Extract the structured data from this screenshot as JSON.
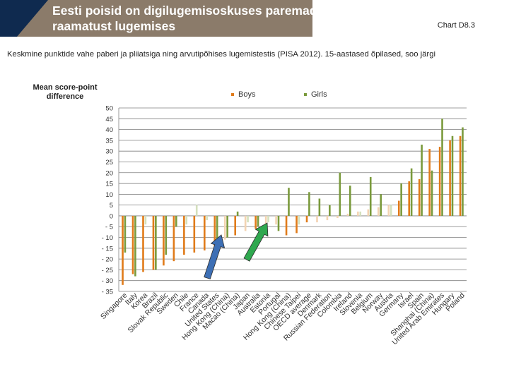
{
  "header": {
    "title": "Eesti poisid on digilugemisoskuses paremad kui\nraamatust lugemises",
    "chart_ref": "Chart D8.3",
    "subtitle": "Keskmine punktide vahe paberi ja pliiatsiga ning arvutipõhises lugemistestis (PISA 2012). 15-aastased õpilased, soo järgi"
  },
  "colors": {
    "boys": "#e07b1a",
    "girls": "#7a9a3c",
    "boys_light": "#f3d3b2",
    "girls_light": "#d4e0bd",
    "grid": "#7f7f7f",
    "arrow_blue": "#3d6fb5",
    "arrow_green": "#2fa84f",
    "banner": "#8b7b6a",
    "banner_dark": "#0f2a4f"
  },
  "chart_data": {
    "type": "bar",
    "title": "",
    "ylabel": "Mean score-point\ndifference",
    "xlabel": "",
    "ylim": [
      -35,
      50
    ],
    "yticks": [
      50,
      45,
      40,
      35,
      30,
      25,
      20,
      15,
      10,
      5,
      0,
      -5,
      -10,
      -15,
      -20,
      -25,
      -30,
      -35
    ],
    "ytick_labels": [
      "50",
      "45",
      "40",
      "35",
      "30",
      "25",
      "20",
      "15",
      "10",
      "5",
      "0",
      "- 5",
      "- 10",
      "- 15",
      "- 20",
      "- 25",
      "- 30",
      "- 35"
    ],
    "grid": true,
    "legend": "top-center",
    "categories": [
      "Singapore",
      "Italy",
      "Korea",
      "Brazil",
      "Slovak Republic",
      "Sweden",
      "Chile",
      "France",
      "Canada",
      "United States",
      "Hong Kong (China)",
      "Macao (China)",
      "Japan",
      "Australia",
      "Estonia",
      "Portugal",
      "Hong Kong (China)",
      "Chinese Taipei",
      "OECD average",
      "Denmark",
      "Russian Federation",
      "Colombia",
      "Ireland",
      "Slovenia",
      "Belgium",
      "Norway",
      "Austria",
      "Germany",
      "Israel",
      "Spain",
      "Shanghai (China)",
      "United Arab Emirates",
      "Hungary",
      "Poland"
    ],
    "series": [
      {
        "name": "Boys",
        "values": [
          -32,
          -27,
          -26,
          -25,
          -23,
          -21,
          -18,
          -17,
          -16,
          -14,
          -11,
          -9,
          -7,
          -6,
          -5,
          -4,
          -9,
          -8,
          -3,
          -3,
          -2,
          -1,
          1,
          2,
          3,
          4,
          5,
          7,
          16,
          17,
          31,
          32,
          35,
          37
        ]
      },
      {
        "name": "Girls",
        "values": [
          -17,
          -28,
          -4,
          -25,
          -18,
          -5,
          -4,
          5,
          -2,
          -12,
          -10,
          2,
          -3,
          -5,
          -3,
          -7,
          13,
          -4,
          11,
          8,
          5,
          20,
          14,
          2,
          18,
          10,
          5,
          15,
          22,
          33,
          21,
          45,
          37,
          41
        ]
      }
    ],
    "significant": {
      "boys": [
        true,
        true,
        true,
        true,
        true,
        true,
        true,
        true,
        true,
        true,
        false,
        true,
        false,
        true,
        false,
        false,
        true,
        true,
        true,
        false,
        false,
        false,
        false,
        false,
        false,
        false,
        false,
        true,
        true,
        true,
        true,
        true,
        true,
        true
      ],
      "girls": [
        true,
        true,
        false,
        true,
        true,
        true,
        false,
        false,
        false,
        true,
        true,
        true,
        false,
        true,
        false,
        true,
        true,
        false,
        true,
        true,
        true,
        true,
        true,
        false,
        true,
        true,
        false,
        true,
        true,
        true,
        true,
        true,
        true,
        true
      ]
    }
  }
}
